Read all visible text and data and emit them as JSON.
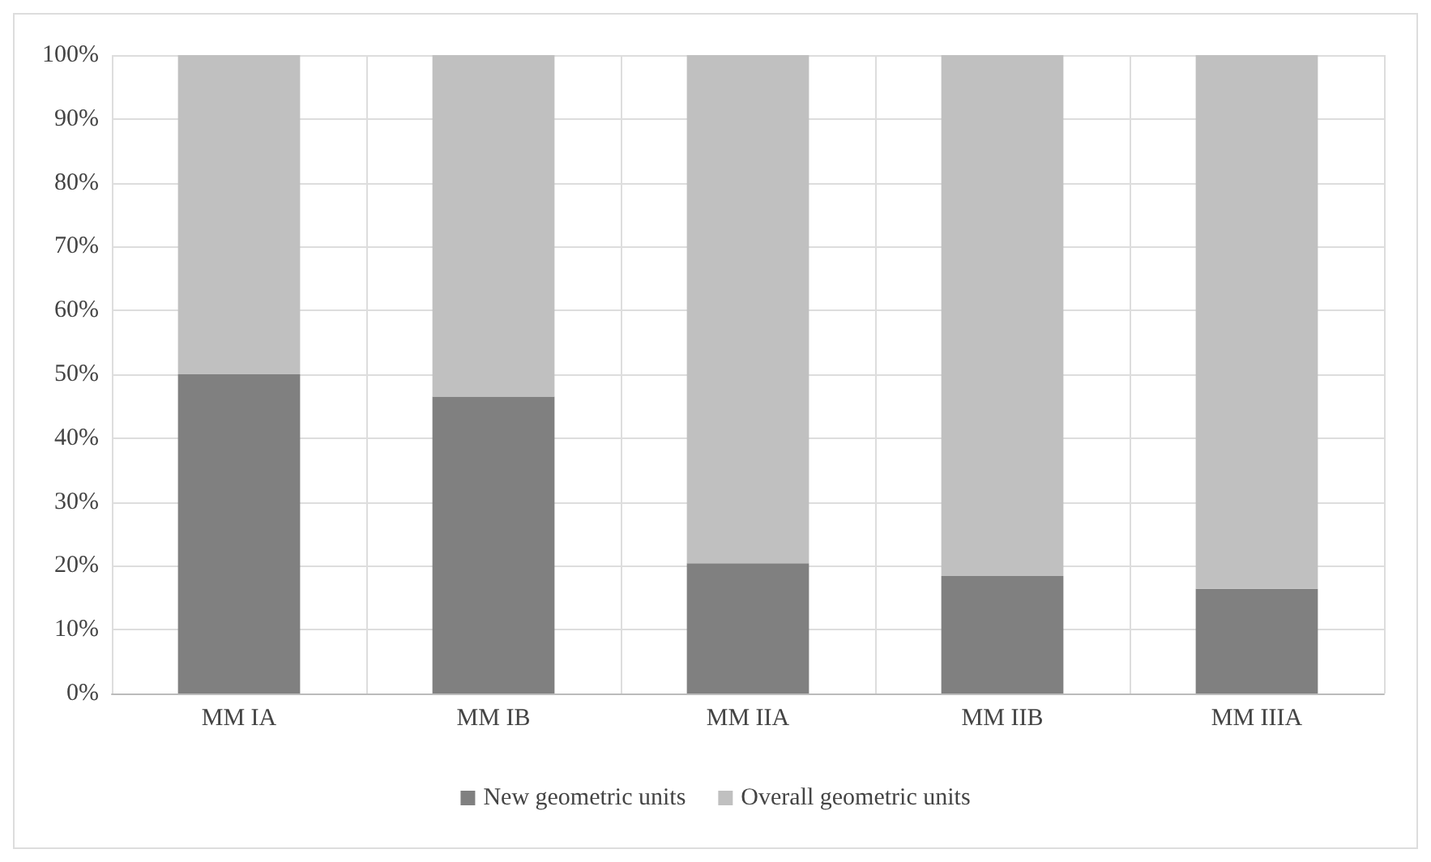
{
  "chart_data": {
    "type": "bar",
    "stacked": true,
    "categories": [
      "MM IA",
      "MM IB",
      "MM IIA",
      "MM IIB",
      "MM IIIA"
    ],
    "series": [
      {
        "name": "New geometric units",
        "color": "#808080",
        "values": [
          50,
          46.5,
          20.4,
          18.4,
          16.4
        ]
      },
      {
        "name": "Overall geometric units",
        "color": "#c0c0c0",
        "values": [
          50,
          53.5,
          79.6,
          81.6,
          83.6
        ]
      }
    ],
    "ylim": [
      0,
      100
    ],
    "yticks": [
      {
        "value": 0,
        "label": "0%"
      },
      {
        "value": 10,
        "label": "10%"
      },
      {
        "value": 20,
        "label": "20%"
      },
      {
        "value": 30,
        "label": "30%"
      },
      {
        "value": 40,
        "label": "40%"
      },
      {
        "value": 50,
        "label": "50%"
      },
      {
        "value": 60,
        "label": "60%"
      },
      {
        "value": 70,
        "label": "70%"
      },
      {
        "value": 80,
        "label": "80%"
      },
      {
        "value": 90,
        "label": "90%"
      },
      {
        "value": 100,
        "label": "100%"
      }
    ],
    "grid": true,
    "legend": "bottom"
  }
}
